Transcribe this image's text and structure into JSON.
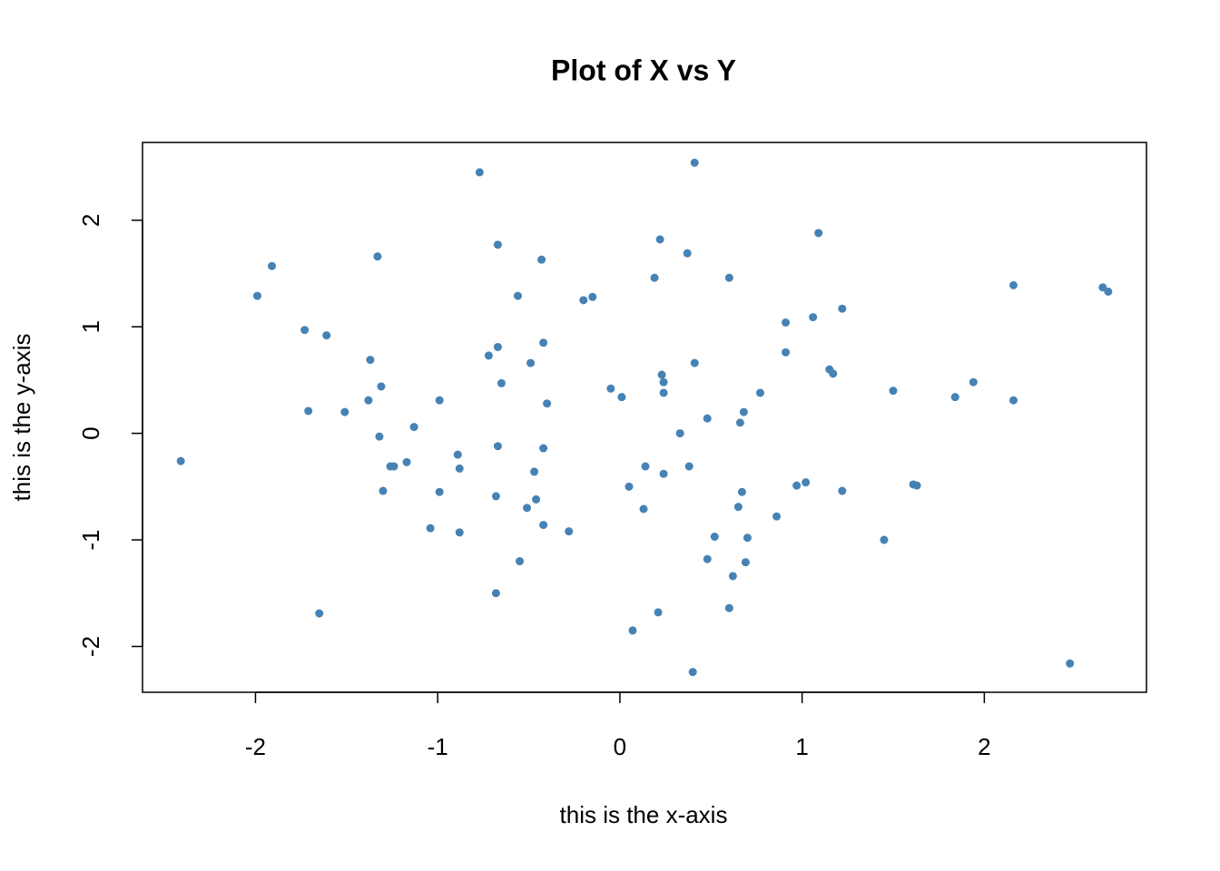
{
  "chart_data": {
    "type": "scatter",
    "title": "Plot of X vs Y",
    "x_label": "this is the x-axis",
    "y_label": "this is the y-axis",
    "color": "#4682b4",
    "xlim": [
      -2.62,
      2.89
    ],
    "ylim": [
      -2.43,
      2.73
    ],
    "xticks": [
      -2,
      -1,
      0,
      1,
      2
    ],
    "yticks": [
      -2,
      -1,
      0,
      1,
      2
    ],
    "x": [
      -2.41,
      -1.99,
      -1.91,
      -1.73,
      -1.71,
      -1.61,
      -1.65,
      -1.51,
      -1.33,
      -1.37,
      -1.38,
      -1.31,
      -1.32,
      -1.3,
      -1.26,
      -1.24,
      -1.17,
      -1.13,
      -1.04,
      -0.99,
      -0.99,
      -0.89,
      -0.88,
      -0.88,
      -0.77,
      -0.72,
      -0.67,
      -0.67,
      -0.65,
      -0.67,
      -0.68,
      -0.68,
      -0.56,
      -0.55,
      -0.51,
      -0.49,
      -0.47,
      -0.46,
      -0.43,
      -0.42,
      -0.42,
      -0.42,
      -0.4,
      -0.28,
      -0.2,
      -0.15,
      -0.05,
      0.01,
      0.05,
      0.07,
      0.13,
      0.14,
      0.19,
      0.22,
      0.23,
      0.24,
      0.24,
      0.24,
      0.21,
      0.33,
      0.37,
      0.38,
      0.4,
      0.41,
      0.41,
      0.48,
      0.48,
      0.52,
      0.6,
      0.6,
      0.62,
      0.65,
      0.66,
      0.67,
      0.68,
      0.69,
      0.7,
      0.77,
      0.86,
      0.91,
      0.91,
      0.97,
      1.02,
      1.06,
      1.09,
      1.15,
      1.17,
      1.22,
      1.22,
      1.45,
      1.5,
      1.61,
      1.63,
      1.84,
      1.94,
      2.16,
      2.16,
      2.47,
      2.65,
      2.68
    ],
    "values": [
      -0.26,
      1.29,
      1.57,
      0.97,
      0.21,
      0.92,
      -1.69,
      0.2,
      1.66,
      0.69,
      0.31,
      0.44,
      -0.03,
      -0.54,
      -0.31,
      -0.31,
      -0.27,
      0.06,
      -0.89,
      0.31,
      -0.55,
      -0.2,
      -0.33,
      -0.93,
      2.45,
      0.73,
      1.77,
      0.81,
      0.47,
      -0.12,
      -0.59,
      -1.5,
      1.29,
      -1.2,
      -0.7,
      0.66,
      -0.36,
      -0.62,
      1.63,
      0.85,
      -0.14,
      -0.86,
      0.28,
      -0.92,
      1.25,
      1.28,
      0.42,
      0.34,
      -0.5,
      -1.85,
      -0.71,
      -0.31,
      1.46,
      1.82,
      0.55,
      0.48,
      0.38,
      -0.38,
      -1.68,
      0.0,
      1.69,
      -0.31,
      -2.24,
      2.54,
      0.66,
      0.14,
      -1.18,
      -0.97,
      1.46,
      -1.64,
      -1.34,
      -0.69,
      0.1,
      -0.55,
      0.2,
      -1.21,
      -0.98,
      0.38,
      -0.78,
      1.04,
      0.76,
      -0.49,
      -0.46,
      1.09,
      1.88,
      0.6,
      0.56,
      1.17,
      -0.54,
      -1.0,
      0.4,
      -0.48,
      -0.49,
      0.34,
      0.48,
      1.39,
      0.31,
      -2.16,
      1.37,
      1.33
    ]
  }
}
